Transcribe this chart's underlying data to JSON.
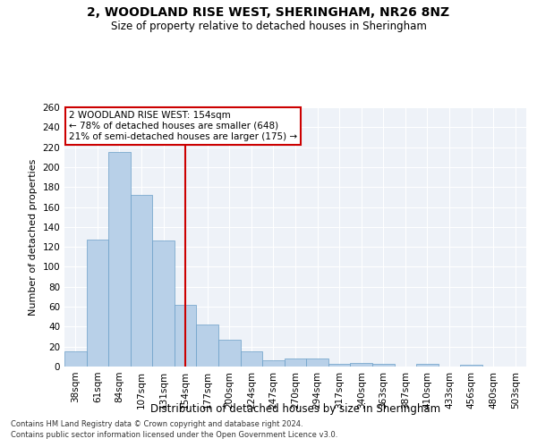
{
  "title": "2, WOODLAND RISE WEST, SHERINGHAM, NR26 8NZ",
  "subtitle": "Size of property relative to detached houses in Sheringham",
  "xlabel": "Distribution of detached houses by size in Sheringham",
  "ylabel": "Number of detached properties",
  "categories": [
    "38sqm",
    "61sqm",
    "84sqm",
    "107sqm",
    "131sqm",
    "154sqm",
    "177sqm",
    "200sqm",
    "224sqm",
    "247sqm",
    "270sqm",
    "294sqm",
    "317sqm",
    "340sqm",
    "363sqm",
    "387sqm",
    "410sqm",
    "433sqm",
    "456sqm",
    "480sqm",
    "503sqm"
  ],
  "values": [
    15,
    127,
    215,
    172,
    126,
    62,
    42,
    27,
    15,
    6,
    8,
    8,
    3,
    4,
    3,
    0,
    3,
    0,
    2,
    0,
    0
  ],
  "bar_color": "#b8d0e8",
  "bar_edge_color": "#6a9fc8",
  "highlight_index": 5,
  "highlight_line_color": "#cc0000",
  "annotation_line1": "2 WOODLAND RISE WEST: 154sqm",
  "annotation_line2": "← 78% of detached houses are smaller (648)",
  "annotation_line3": "21% of semi-detached houses are larger (175) →",
  "annotation_box_color": "#ffffff",
  "annotation_box_edge": "#cc0000",
  "ylim": [
    0,
    260
  ],
  "yticks": [
    0,
    20,
    40,
    60,
    80,
    100,
    120,
    140,
    160,
    180,
    200,
    220,
    240,
    260
  ],
  "background_color": "#eef2f8",
  "grid_color": "#ffffff",
  "footer1": "Contains HM Land Registry data © Crown copyright and database right 2024.",
  "footer2": "Contains public sector information licensed under the Open Government Licence v3.0."
}
